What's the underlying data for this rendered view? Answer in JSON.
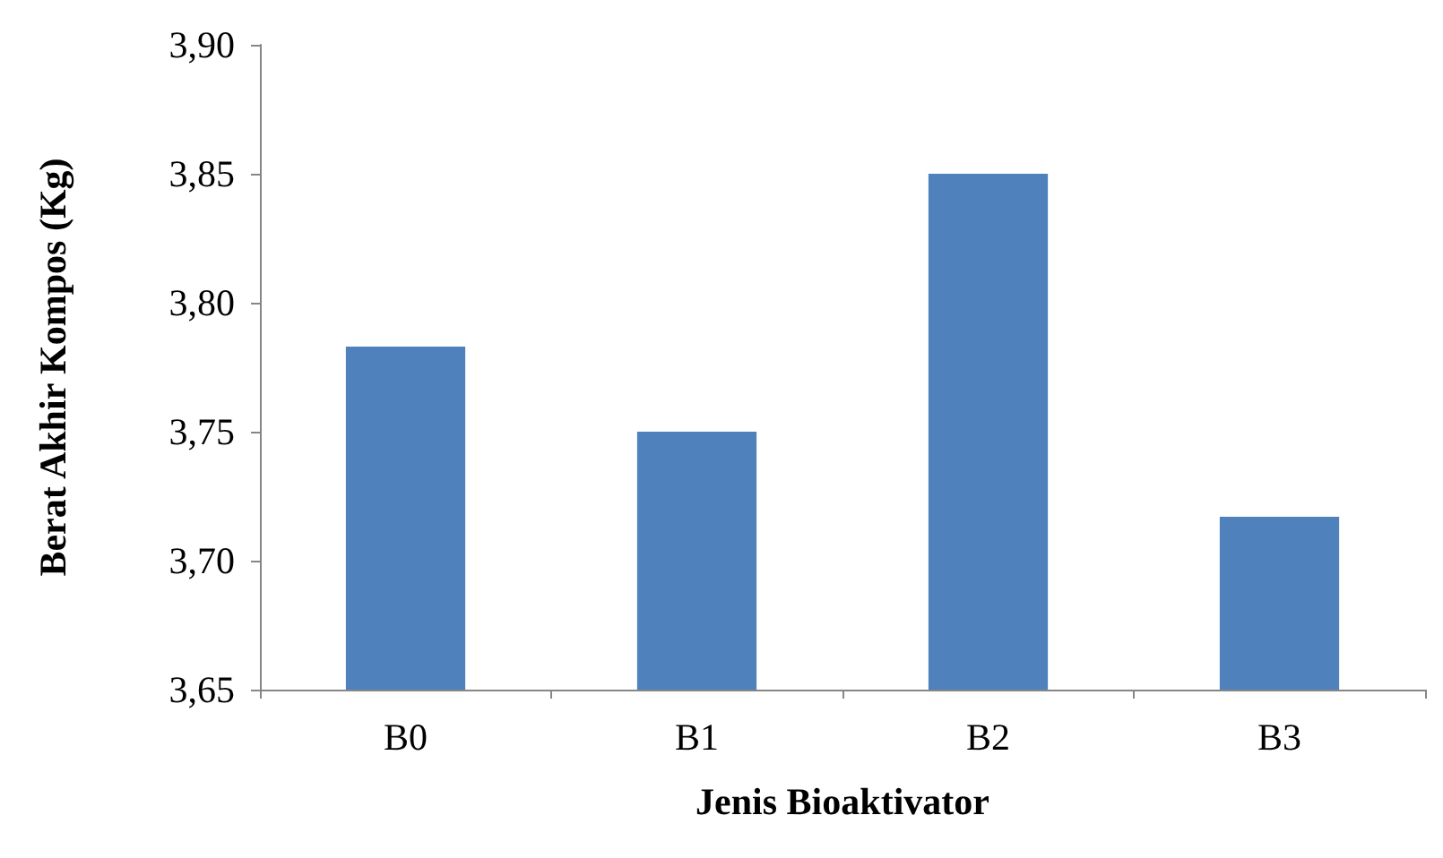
{
  "chart_data": {
    "type": "bar",
    "xlabel": "Jenis Bioaktivator",
    "ylabel": "Berat Akhir Kompos (Kg)",
    "categories": [
      "B0",
      "B1",
      "B2",
      "B3"
    ],
    "values": [
      3.783,
      3.75,
      3.85,
      3.717
    ],
    "color": "#4f81bd",
    "ylim": [
      3.65,
      3.9
    ],
    "yticks": [
      {
        "value": 3.65,
        "label": "3,65"
      },
      {
        "value": 3.7,
        "label": "3,70"
      },
      {
        "value": 3.75,
        "label": "3,75"
      },
      {
        "value": 3.8,
        "label": "3,80"
      },
      {
        "value": 3.85,
        "label": "3,85"
      },
      {
        "value": 3.9,
        "label": "3,90"
      }
    ],
    "grid": false
  }
}
